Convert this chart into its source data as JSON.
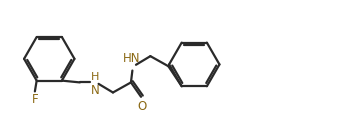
{
  "bg_color": "#ffffff",
  "bond_color": "#2a2a2a",
  "atom_color": "#8B6914",
  "line_width": 1.6,
  "font_size": 8.5,
  "dbo": 0.06,
  "ring_r": 0.7,
  "fig_width": 3.54,
  "fig_height": 1.32,
  "dpi": 100,
  "xlim": [
    -0.2,
    9.6
  ],
  "ylim": [
    0.3,
    3.4
  ]
}
